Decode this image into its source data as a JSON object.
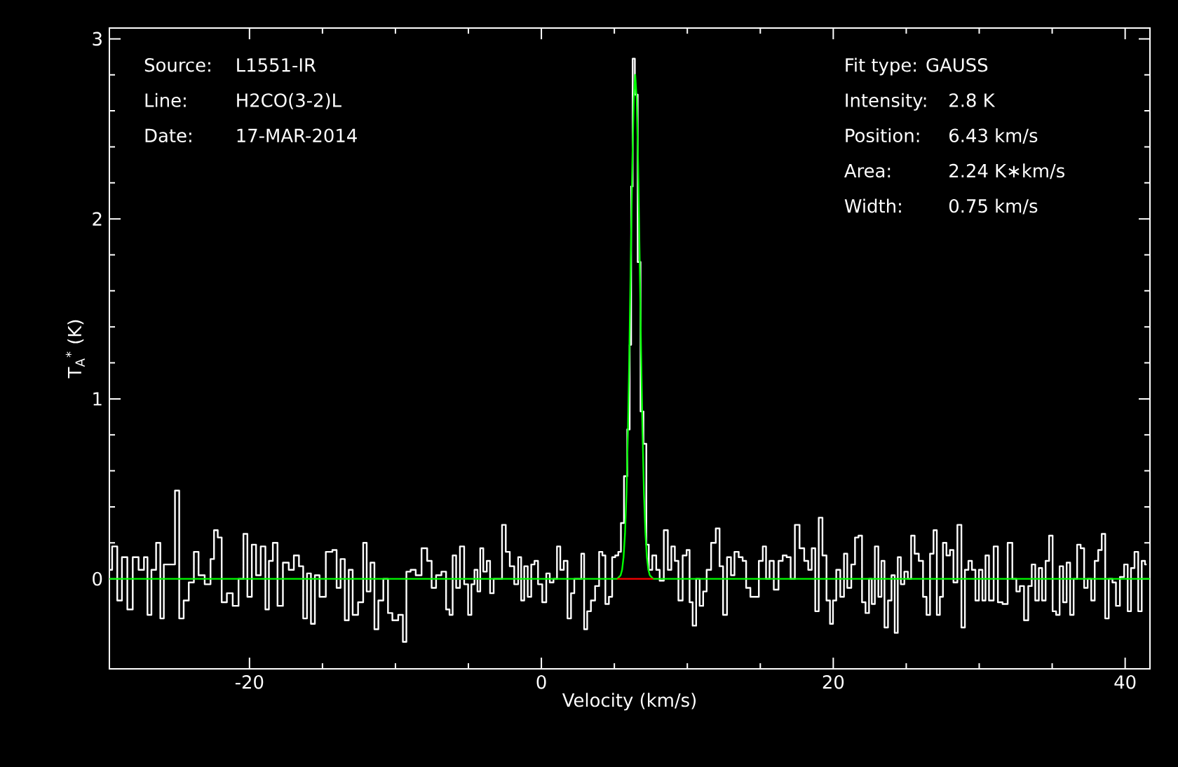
{
  "chart_data": {
    "type": "step",
    "xlabel": "Velocity (km/s)",
    "ylabel": "T$_{A}$$^{*}$ (K)",
    "xlim": [
      -29.6,
      41.7
    ],
    "ylim": [
      -0.5,
      3.06
    ],
    "xticks": [
      -20,
      0,
      20,
      40
    ],
    "yticks": [
      0,
      1,
      2,
      3
    ],
    "grid": false,
    "annotations": [
      "Source:",
      "L1551-IR",
      "Line:",
      "H2CO(3-2)L",
      "Date:",
      "17-MAR-2014",
      "Fit type: GAUSS",
      "Intensity:",
      "2.8 K",
      "Position:",
      "6.43 km/s",
      "Area:",
      "2.24 K∗km/s",
      "Width:",
      "0.75 km/s"
    ],
    "series": [
      {
        "color": "#ffffff",
        "x": [
          -29.6,
          -29.22,
          -28.9,
          -28.58,
          -28.16,
          -27.84,
          -27.36,
          -27.1,
          -26.88,
          -26.56,
          -26.24,
          -25.98,
          -25.76,
          -25.28,
          -24.93,
          -24.7,
          -24.32,
          -24.0,
          -23.62,
          -23.36,
          -22.78,
          -22.56,
          -22.3,
          -22.05,
          -21.76,
          -21.34,
          -20.96,
          -20.54,
          -20.29,
          -20.0,
          -19.68,
          -19.42,
          -19.04,
          -18.78,
          -18.56,
          -18.24,
          -17.92,
          -17.5,
          -17.12,
          -16.8,
          -16.42,
          -16.22,
          -15.9,
          -15.68,
          -15.36,
          -15.04,
          -14.5,
          -14.14,
          -13.92,
          -13.6,
          -13.34,
          -13.06,
          -12.8,
          -12.32,
          -12.1,
          -11.84,
          -11.58,
          -11.3,
          -11.04,
          -10.62,
          -10.4,
          -10.02,
          -9.6,
          -9.38,
          -9.12,
          -8.8,
          -8.42,
          -8.0,
          -7.65,
          -7.39,
          -7.04,
          -6.66,
          -6.4,
          -6.19,
          -5.97,
          -5.71,
          -5.45,
          -5.13,
          -4.91,
          -4.68,
          -4.49,
          -4.27,
          -4.11,
          -3.85,
          -3.63,
          -3.4,
          -3.14,
          -2.82,
          -2.57,
          -2.31,
          -2.02,
          -1.7,
          -1.48,
          -1.29,
          -1.06,
          -0.81,
          -0.58,
          -0.36,
          -0.1,
          0.22,
          0.45,
          0.7,
          0.96,
          1.18,
          1.41,
          1.66,
          1.92,
          2.14,
          2.37,
          2.62,
          2.85,
          3.01,
          3.27,
          3.52,
          3.84,
          4.07,
          4.29,
          4.48,
          4.77,
          4.93,
          5.19,
          5.35,
          5.55,
          5.77,
          6.0,
          6.1,
          6.2,
          6.31,
          6.5,
          6.7,
          6.89,
          7.1,
          7.28,
          7.44,
          7.76,
          7.98,
          8.23,
          8.55,
          8.78,
          9.03,
          9.26,
          9.52,
          9.84,
          10.06,
          10.25,
          10.48,
          10.73,
          10.96,
          11.21,
          11.44,
          11.82,
          12.08,
          12.34,
          12.56,
          12.88,
          13.1,
          13.36,
          13.68,
          13.9,
          14.16,
          14.48,
          14.74,
          15.06,
          15.28,
          15.51,
          15.76,
          16.09,
          16.41,
          16.66,
          16.95,
          17.21,
          17.53,
          17.85,
          18.17,
          18.4,
          18.65,
          18.88,
          19.13,
          19.39,
          19.68,
          19.87,
          20.09,
          20.32,
          20.64,
          20.83,
          21.09,
          21.38,
          21.6,
          21.86,
          22.08,
          22.34,
          22.56,
          22.72,
          22.98,
          23.2,
          23.4,
          23.62,
          23.88,
          24.1,
          24.32,
          24.52,
          24.74,
          25.0,
          25.22,
          25.45,
          25.7,
          26.02,
          26.28,
          26.5,
          26.76,
          26.98,
          27.21,
          27.4,
          27.63,
          27.88,
          28.11,
          28.36,
          28.65,
          28.91,
          29.13,
          29.39,
          29.61,
          29.87,
          30.09,
          30.35,
          30.51,
          30.83,
          31.15,
          31.41,
          31.79,
          32.11,
          32.43,
          32.66,
          32.91,
          33.23,
          33.49,
          33.71,
          33.97,
          34.2,
          34.42,
          34.68,
          34.9,
          35.16,
          35.38,
          35.64,
          35.86,
          36.12,
          36.34,
          36.6,
          36.82,
          37.08,
          37.3,
          37.56,
          37.79,
          38.04,
          38.27,
          38.52,
          38.75,
          39.0,
          39.26,
          39.48,
          39.8,
          40.06,
          40.29,
          40.51,
          40.77,
          41.02,
          41.25,
          41.47
        ],
        "values": [
          0.05,
          0.18,
          -0.12,
          0.12,
          -0.17,
          0.12,
          0.05,
          0.12,
          -0.2,
          0.05,
          0.2,
          -0.22,
          0.08,
          0.08,
          0.49,
          -0.22,
          -0.12,
          -0.02,
          0.15,
          0.02,
          -0.03,
          0.11,
          0.27,
          0.23,
          -0.13,
          -0.08,
          -0.15,
          0.0,
          0.25,
          -0.1,
          0.19,
          0.02,
          0.18,
          -0.17,
          0.1,
          0.2,
          -0.15,
          0.09,
          0.05,
          0.13,
          0.07,
          -0.22,
          0.03,
          -0.25,
          0.02,
          -0.1,
          0.15,
          0.16,
          -0.05,
          0.11,
          -0.23,
          0.05,
          -0.2,
          -0.13,
          0.2,
          -0.07,
          0.09,
          -0.28,
          -0.12,
          0.0,
          -0.19,
          -0.23,
          -0.2,
          -0.35,
          0.04,
          0.05,
          0.02,
          0.17,
          0.1,
          -0.05,
          0.02,
          0.04,
          -0.17,
          -0.2,
          0.13,
          -0.05,
          0.18,
          -0.03,
          -0.2,
          -0.03,
          0.05,
          -0.07,
          0.17,
          0.04,
          0.1,
          -0.08,
          0.0,
          0.0,
          0.3,
          0.15,
          0.07,
          -0.03,
          0.12,
          -0.12,
          0.07,
          -0.1,
          0.08,
          0.1,
          -0.03,
          -0.13,
          0.03,
          -0.02,
          0.0,
          0.18,
          0.05,
          0.1,
          -0.22,
          -0.08,
          0.0,
          0.0,
          0.14,
          -0.28,
          -0.18,
          -0.12,
          -0.04,
          0.15,
          0.13,
          -0.14,
          -0.1,
          0.12,
          0.13,
          0.15,
          0.31,
          0.57,
          0.83,
          1.3,
          2.18,
          2.89,
          2.69,
          1.76,
          0.93,
          0.75,
          0.19,
          0.05,
          0.13,
          0.05,
          -0.01,
          0.27,
          0.05,
          0.18,
          0.1,
          -0.12,
          0.13,
          0.16,
          -0.13,
          -0.26,
          0.0,
          -0.15,
          -0.07,
          0.05,
          0.2,
          0.28,
          0.07,
          -0.2,
          0.12,
          0.02,
          0.15,
          0.12,
          0.1,
          -0.05,
          -0.1,
          -0.1,
          0.1,
          0.18,
          0.0,
          0.1,
          -0.06,
          0.1,
          0.13,
          0.12,
          0.0,
          0.3,
          0.17,
          0.1,
          0.05,
          0.17,
          -0.18,
          0.34,
          0.13,
          -0.12,
          -0.25,
          -0.12,
          0.05,
          -0.1,
          0.14,
          -0.05,
          0.08,
          0.23,
          0.24,
          -0.13,
          -0.19,
          0.0,
          -0.14,
          0.18,
          -0.1,
          0.1,
          -0.27,
          -0.12,
          0.02,
          -0.3,
          0.12,
          -0.03,
          0.04,
          0.0,
          0.24,
          0.14,
          0.1,
          -0.1,
          -0.2,
          0.14,
          0.27,
          -0.2,
          -0.1,
          0.2,
          0.13,
          0.16,
          -0.02,
          0.3,
          -0.27,
          0.05,
          0.1,
          0.05,
          -0.12,
          0.05,
          -0.12,
          0.13,
          -0.12,
          0.18,
          -0.13,
          -0.14,
          0.2,
          0.0,
          -0.07,
          -0.04,
          -0.23,
          -0.04,
          0.08,
          -0.12,
          0.06,
          -0.12,
          0.1,
          0.24,
          -0.18,
          -0.2,
          0.07,
          -0.13,
          0.09,
          -0.2,
          0.0,
          0.19,
          0.17,
          -0.05,
          0.0,
          -0.12,
          0.1,
          0.16,
          0.25,
          -0.22,
          0.0,
          -0.02,
          -0.15,
          0.01,
          0.08,
          -0.18,
          0.06,
          0.15,
          -0.18,
          0.1,
          0.08
        ]
      },
      {
        "type": "line",
        "color": "#00ff00",
        "x": [
          -29.6,
          5.2,
          5.43,
          5.53,
          5.63,
          5.73,
          5.83,
          5.93,
          6.03,
          6.13,
          6.23,
          6.33,
          6.43,
          6.53,
          6.63,
          6.73,
          6.83,
          6.93,
          7.03,
          7.13,
          7.23,
          7.33,
          7.43,
          7.66,
          41.7
        ],
        "values": [
          0,
          0,
          0.02,
          0.05,
          0.12,
          0.25,
          0.47,
          0.82,
          1.27,
          1.8,
          2.3,
          2.67,
          2.8,
          2.67,
          2.3,
          1.8,
          1.27,
          0.82,
          0.47,
          0.25,
          0.12,
          0.05,
          0.02,
          0,
          0
        ]
      },
      {
        "type": "line",
        "color": "#ff0000",
        "x": [
          5.2,
          7.66
        ],
        "values": [
          0,
          0
        ]
      }
    ]
  }
}
